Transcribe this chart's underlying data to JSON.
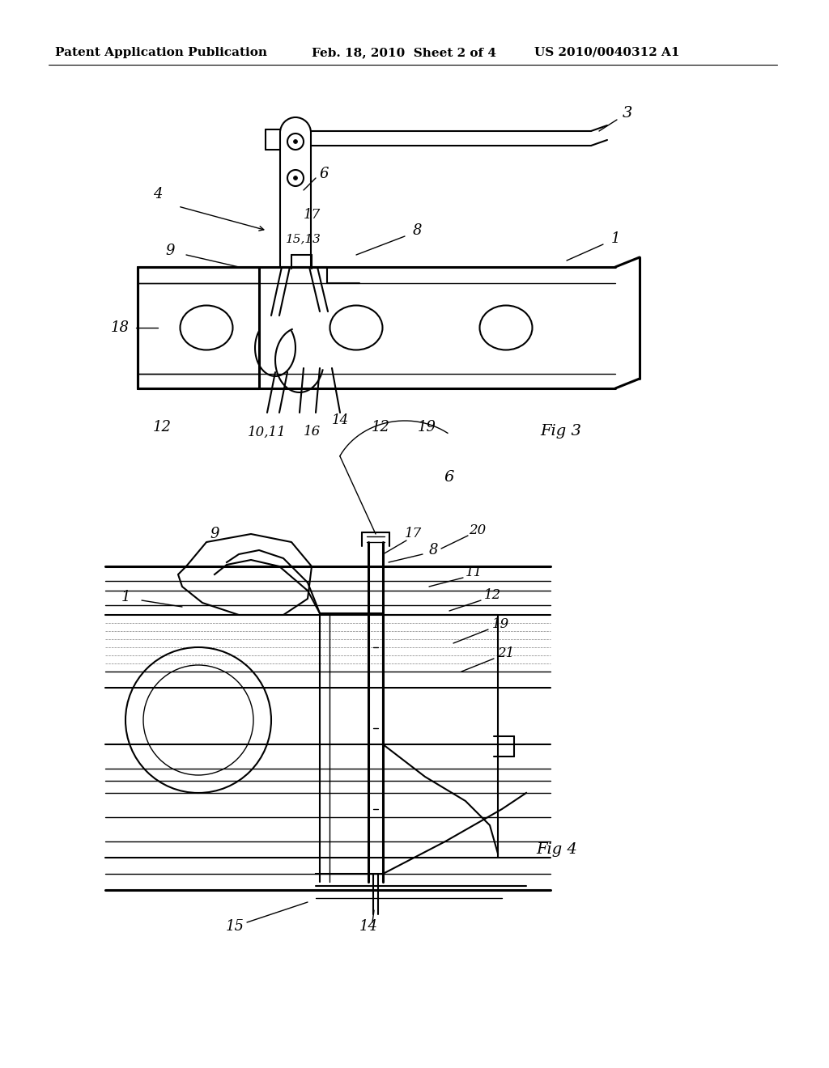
{
  "header_left": "Patent Application Publication",
  "header_mid": "Feb. 18, 2010  Sheet 2 of 4",
  "header_right": "US 2010/0040312 A1",
  "fig3_label": "Fig 3",
  "fig4_label": "Fig 4",
  "bg_color": "#ffffff",
  "line_color": "#000000"
}
